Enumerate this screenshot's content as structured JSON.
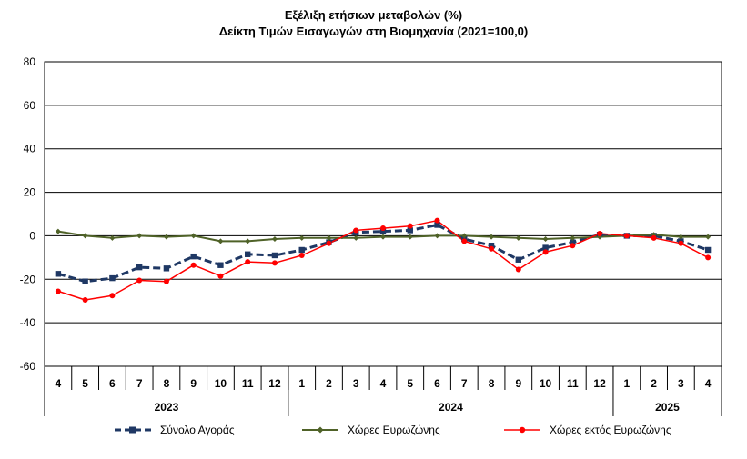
{
  "chart_data": {
    "type": "line",
    "title": "Εξέλιξη ετήσιων μεταβολών (%)",
    "subtitle": "Δείκτη Τιμών Εισαγωγών στη Βιομηχανία (2021=100,0)",
    "categories": [
      "4",
      "5",
      "6",
      "7",
      "8",
      "9",
      "10",
      "11",
      "12",
      "1",
      "2",
      "3",
      "4",
      "5",
      "6",
      "7",
      "8",
      "9",
      "10",
      "11",
      "12",
      "1",
      "2",
      "3",
      "4"
    ],
    "year_groups": [
      {
        "label": "2023",
        "start": 0,
        "end": 8
      },
      {
        "label": "2024",
        "start": 9,
        "end": 20
      },
      {
        "label": "2025",
        "start": 21,
        "end": 24
      }
    ],
    "ylim": [
      -60,
      80
    ],
    "yticks": [
      80,
      60,
      40,
      20,
      0,
      -20,
      -40,
      -60
    ],
    "grid": true,
    "legend_position": "bottom",
    "series": [
      {
        "name": "Σύνολο Αγοράς",
        "color": "#1f3864",
        "style": "dashed-square",
        "values": [
          -17.5,
          -21,
          -19.5,
          -14.5,
          -15,
          -9.5,
          -13.5,
          -8.5,
          -9,
          -6.5,
          -3,
          1.5,
          2,
          2.5,
          5,
          -1.5,
          -4.5,
          -11,
          -5.5,
          -3,
          0.5,
          0,
          0,
          -2.5,
          -6.5
        ]
      },
      {
        "name": "Χώρες Ευρωζώνης",
        "color": "#4f6228",
        "style": "solid-diamond",
        "values": [
          2,
          0,
          -1,
          0,
          -0.5,
          0,
          -2.5,
          -2.5,
          -1.5,
          -1,
          -1,
          -1,
          -0.5,
          -0.5,
          0,
          0,
          -0.5,
          -1,
          -1.5,
          -1,
          -0.5,
          0,
          0.5,
          -0.5,
          -0.5
        ]
      },
      {
        "name": "Χώρες εκτός Ευρωζώνης",
        "color": "#ff0000",
        "style": "solid-circle",
        "values": [
          -25.5,
          -29.5,
          -27.5,
          -20.5,
          -21,
          -13.5,
          -18.5,
          -12,
          -12.5,
          -9,
          -3.5,
          2.5,
          3.5,
          4.5,
          7,
          -2.5,
          -6,
          -15.5,
          -7.5,
          -4.5,
          1,
          0,
          -1,
          -3.5,
          -10
        ]
      }
    ]
  }
}
